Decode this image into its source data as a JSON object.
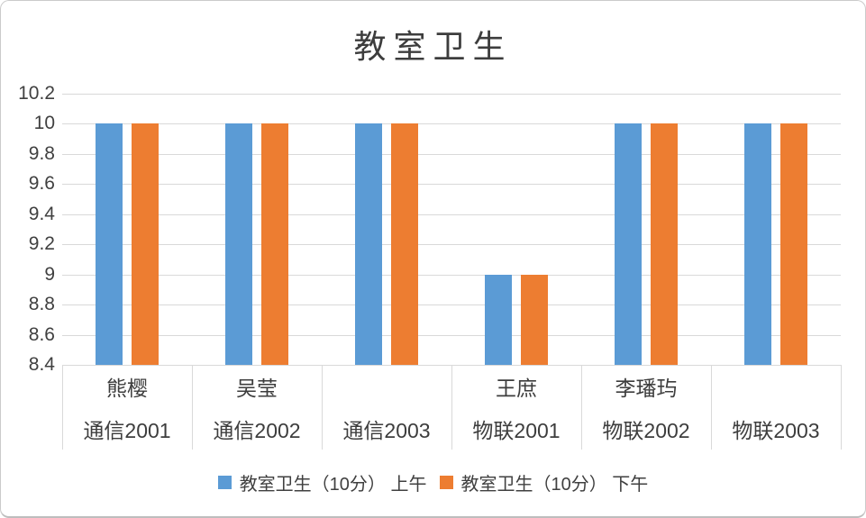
{
  "window": {
    "background": "#ffffff",
    "border_color": "#cbcbcb"
  },
  "chart_data": {
    "type": "bar",
    "title": "教室卫生",
    "categories": [
      {
        "name": "熊樱",
        "group": "通信2001"
      },
      {
        "name": "吴莹",
        "group": "通信2002"
      },
      {
        "name": "",
        "group": "通信2003"
      },
      {
        "name": "王庶",
        "group": "物联2001"
      },
      {
        "name": "李璠玙",
        "group": "物联2002"
      },
      {
        "name": "",
        "group": "物联2003"
      }
    ],
    "series": [
      {
        "name": "教室卫生（10分） 上午",
        "color": "#5B9BD5",
        "values": [
          10,
          10,
          10,
          9,
          10,
          10
        ]
      },
      {
        "name": "教室卫生（10分） 下午",
        "color": "#ED7D31",
        "values": [
          10,
          10,
          10,
          9,
          10,
          10
        ]
      }
    ],
    "y_axis": {
      "min": 8.4,
      "max": 10.2,
      "step": 0.2,
      "tick_labels": [
        "10.2",
        "10",
        "9.8",
        "9.6",
        "9.4",
        "9.2",
        "9",
        "8.8",
        "8.6",
        "8.4"
      ]
    },
    "grid": true,
    "legend_position": "bottom",
    "colors": {
      "gridline": "#d9d9d9",
      "axis_text": "#404040",
      "title_text": "#3d3d3d"
    }
  }
}
